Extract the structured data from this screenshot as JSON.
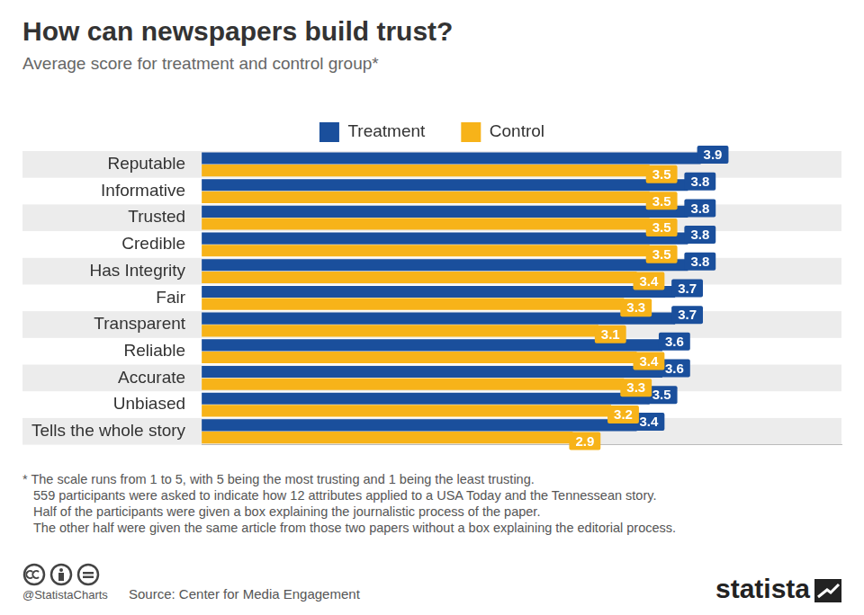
{
  "chart_data": {
    "type": "bar",
    "orientation": "horizontal",
    "title": "How can newspapers build trust?",
    "subtitle": "Average score for treatment and control group*",
    "categories": [
      "Reputable",
      "Informative",
      "Trusted",
      "Credible",
      "Has Integrity",
      "Fair",
      "Transparent",
      "Reliable",
      "Accurate",
      "Unbiased",
      "Tells the whole story"
    ],
    "series": [
      {
        "name": "Treatment",
        "color": "#1a4f9c",
        "values": [
          3.9,
          3.8,
          3.8,
          3.8,
          3.8,
          3.7,
          3.7,
          3.6,
          3.6,
          3.5,
          3.4
        ]
      },
      {
        "name": "Control",
        "color": "#f7b319",
        "values": [
          3.5,
          3.5,
          3.5,
          3.5,
          3.4,
          3.3,
          3.1,
          3.4,
          3.3,
          3.2,
          2.9
        ]
      }
    ],
    "xlim": [
      0,
      5
    ],
    "tick_labels": "y",
    "grid": false,
    "legend": "top",
    "data_labels": true,
    "notes": [
      "* The scale runs from 1 to 5, with 5 being the most trusting and 1 being the least trusting.",
      "559 participants were asked to indicate how 12 attributes applied to a USA Today and the Tennessean story.",
      "Half of the participants were given a box explaining the journalistic process of the paper.",
      "The other half were given the same article from those two papers without a box explaining the editorial process."
    ],
    "credit": "@StatistaCharts",
    "source": "Source: Center for Media Engagement",
    "logo": "statista"
  }
}
